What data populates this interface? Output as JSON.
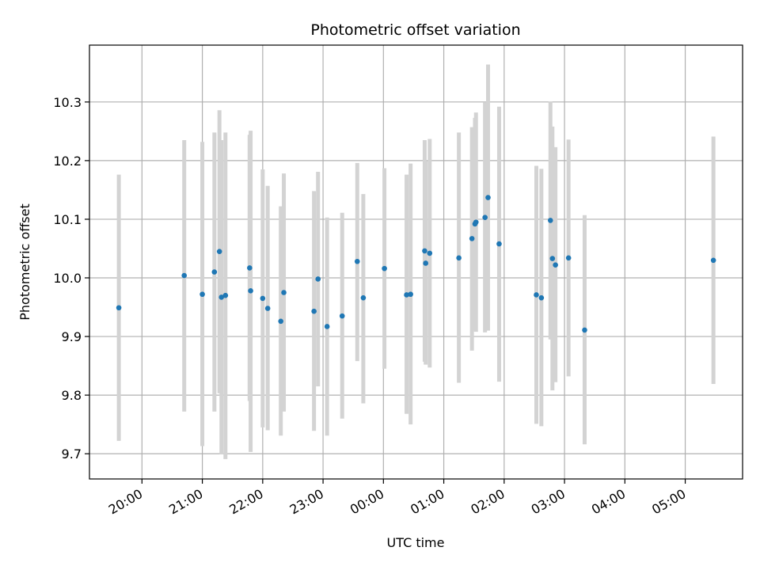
{
  "chart_data": {
    "type": "scatter",
    "title": "Photometric offset variation",
    "xlabel": "UTC time",
    "ylabel": "Photometric offset",
    "grid": true,
    "x_ticks": [
      "20:00",
      "21:00",
      "22:00",
      "23:00",
      "00:00",
      "01:00",
      "02:00",
      "03:00",
      "04:00",
      "05:00"
    ],
    "y_ticks": [
      "9.7",
      "9.8",
      "9.9",
      "10.0",
      "10.1",
      "10.2",
      "10.3"
    ],
    "ylim": [
      9.657,
      10.397
    ],
    "xlim_hours": [
      19.13,
      29.95
    ],
    "colors": {
      "point": "#1f77b4",
      "errorbar": "#d3d3d3",
      "grid": "#b0b0b0"
    },
    "series": [
      {
        "values": [
          {
            "x": "19:37",
            "y": 9.949,
            "lo": 9.722,
            "hi": 10.176
          },
          {
            "x": "20:42",
            "y": 10.004,
            "lo": 9.772,
            "hi": 10.235
          },
          {
            "x": "21:00",
            "y": 9.972,
            "lo": 9.713,
            "hi": 10.232
          },
          {
            "x": "21:12",
            "y": 10.01,
            "lo": 9.772,
            "hi": 10.248
          },
          {
            "x": "21:17",
            "y": 10.045,
            "lo": 9.803,
            "hi": 10.286
          },
          {
            "x": "21:19",
            "y": 9.967,
            "lo": 9.699,
            "hi": 10.235
          },
          {
            "x": "21:23",
            "y": 9.97,
            "lo": 9.691,
            "hi": 10.248
          },
          {
            "x": "21:47",
            "y": 10.017,
            "lo": 9.79,
            "hi": 10.244
          },
          {
            "x": "21:48",
            "y": 9.978,
            "lo": 9.703,
            "hi": 10.251
          },
          {
            "x": "22:00",
            "y": 9.965,
            "lo": 9.745,
            "hi": 10.185
          },
          {
            "x": "22:05",
            "y": 9.948,
            "lo": 9.74,
            "hi": 10.157
          },
          {
            "x": "22:18",
            "y": 9.926,
            "lo": 9.731,
            "hi": 10.122
          },
          {
            "x": "22:21",
            "y": 9.975,
            "lo": 9.772,
            "hi": 10.178
          },
          {
            "x": "22:51",
            "y": 9.943,
            "lo": 9.739,
            "hi": 10.148
          },
          {
            "x": "22:55",
            "y": 9.998,
            "lo": 9.815,
            "hi": 10.181
          },
          {
            "x": "23:04",
            "y": 9.917,
            "lo": 9.731,
            "hi": 10.103
          },
          {
            "x": "23:19",
            "y": 9.935,
            "lo": 9.76,
            "hi": 10.111
          },
          {
            "x": "23:34",
            "y": 10.028,
            "lo": 9.858,
            "hi": 10.196
          },
          {
            "x": "23:40",
            "y": 9.966,
            "lo": 9.786,
            "hi": 10.143
          },
          {
            "x": "00:01",
            "y": 10.016,
            "lo": 9.845,
            "hi": 10.187
          },
          {
            "x": "00:23",
            "y": 9.971,
            "lo": 9.768,
            "hi": 10.176
          },
          {
            "x": "00:27",
            "y": 9.972,
            "lo": 9.75,
            "hi": 10.195
          },
          {
            "x": "00:41",
            "y": 10.046,
            "lo": 9.857,
            "hi": 10.235
          },
          {
            "x": "00:42",
            "y": 10.025,
            "lo": 9.852,
            "hi": 10.199
          },
          {
            "x": "00:46",
            "y": 10.042,
            "lo": 9.847,
            "hi": 10.237
          },
          {
            "x": "01:15",
            "y": 10.034,
            "lo": 9.821,
            "hi": 10.248
          },
          {
            "x": "01:28",
            "y": 10.067,
            "lo": 9.876,
            "hi": 10.257
          },
          {
            "x": "01:31",
            "y": 10.092,
            "lo": 9.91,
            "hi": 10.273
          },
          {
            "x": "01:32",
            "y": 10.095,
            "lo": 9.908,
            "hi": 10.282
          },
          {
            "x": "01:41",
            "y": 10.103,
            "lo": 9.907,
            "hi": 10.299
          },
          {
            "x": "01:44",
            "y": 10.137,
            "lo": 9.91,
            "hi": 10.364
          },
          {
            "x": "01:55",
            "y": 10.058,
            "lo": 9.823,
            "hi": 10.292
          },
          {
            "x": "02:32",
            "y": 9.971,
            "lo": 9.751,
            "hi": 10.191
          },
          {
            "x": "02:37",
            "y": 9.966,
            "lo": 9.747,
            "hi": 10.186
          },
          {
            "x": "02:46",
            "y": 10.098,
            "lo": 9.895,
            "hi": 10.301
          },
          {
            "x": "02:48",
            "y": 10.033,
            "lo": 9.808,
            "hi": 10.258
          },
          {
            "x": "02:51",
            "y": 10.022,
            "lo": 9.822,
            "hi": 10.223
          },
          {
            "x": "03:04",
            "y": 10.034,
            "lo": 9.832,
            "hi": 10.236
          },
          {
            "x": "03:20",
            "y": 9.911,
            "lo": 9.716,
            "hi": 10.107
          },
          {
            "x": "05:28",
            "y": 10.03,
            "lo": 9.819,
            "hi": 10.241
          }
        ]
      }
    ]
  }
}
